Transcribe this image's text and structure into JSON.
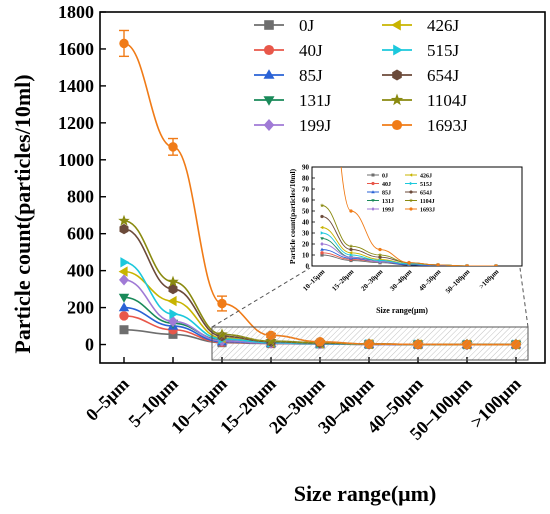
{
  "chart_data": {
    "type": "line",
    "xlabel": "Size range(μm)",
    "ylabel": "Particle count(particles/10ml)",
    "categories": [
      "0–5μm",
      "5–10μm",
      "10–15μm",
      "15–20μm",
      "20–30μm",
      "30–40μm",
      "40–50μm",
      "50–100μm",
      ">100μm"
    ],
    "ylim": [
      -100,
      1800
    ],
    "yticks": [
      0,
      200,
      400,
      600,
      800,
      1000,
      1200,
      1400,
      1600,
      1800
    ],
    "legend_position": "top-right",
    "grid": false,
    "series": [
      {
        "name": "0J",
        "color": "#6e6e6e",
        "marker": "square",
        "values": [
          80,
          55,
          10,
          5,
          3,
          1,
          0,
          0,
          0
        ]
      },
      {
        "name": "40J",
        "color": "#e8574a",
        "marker": "circle",
        "values": [
          155,
          80,
          12,
          6,
          4,
          1,
          0,
          0,
          0
        ]
      },
      {
        "name": "85J",
        "color": "#2a62d6",
        "marker": "triangle-up",
        "values": [
          200,
          100,
          15,
          7,
          4,
          1,
          0,
          0,
          0
        ]
      },
      {
        "name": "131J",
        "color": "#1a8a5a",
        "marker": "triangle-down",
        "values": [
          255,
          115,
          25,
          8,
          5,
          2,
          1,
          0,
          0
        ]
      },
      {
        "name": "199J",
        "color": "#a07ad6",
        "marker": "diamond",
        "values": [
          350,
          125,
          20,
          8,
          4,
          2,
          1,
          0,
          0
        ]
      },
      {
        "name": "426J",
        "color": "#c8b400",
        "marker": "triangle-left",
        "values": [
          395,
          235,
          35,
          12,
          6,
          2,
          1,
          0,
          0
        ]
      },
      {
        "name": "515J",
        "color": "#1cc8dc",
        "marker": "triangle-right",
        "values": [
          445,
          165,
          30,
          10,
          5,
          2,
          1,
          0,
          0
        ]
      },
      {
        "name": "654J",
        "color": "#6b4a3a",
        "marker": "hexagon",
        "values": [
          625,
          300,
          45,
          15,
          8,
          3,
          1,
          0,
          0
        ]
      },
      {
        "name": "1104J",
        "color": "#8a8a10",
        "marker": "star",
        "values": [
          670,
          340,
          55,
          18,
          10,
          3,
          1,
          0,
          0
        ]
      },
      {
        "name": "1693J",
        "color": "#f07b17",
        "marker": "circle",
        "values": [
          1630,
          1070,
          222,
          50,
          15,
          3,
          1,
          0,
          0
        ],
        "errors": [
          70,
          45,
          40,
          10,
          5,
          2,
          1,
          1,
          1
        ]
      }
    ],
    "inset": {
      "xlabel": "Size range(μm)",
      "ylabel": "Particle count(particles/10ml)",
      "categories": [
        "10–15μm",
        "15–20μm",
        "20–30μm",
        "30–40μm",
        "40–50μm",
        "50–100μm",
        ">100μm"
      ],
      "ylim": [
        0,
        90
      ],
      "yticks": [
        0,
        10,
        20,
        30,
        40,
        50,
        60,
        70,
        80,
        90
      ]
    }
  }
}
